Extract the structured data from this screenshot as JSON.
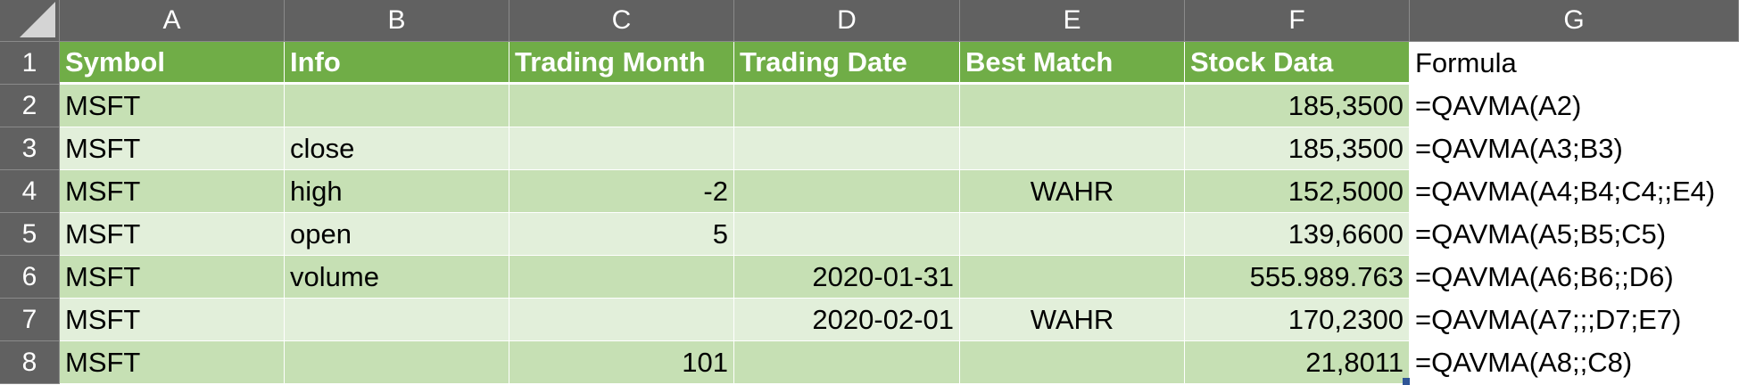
{
  "columns": [
    "A",
    "B",
    "C",
    "D",
    "E",
    "F",
    "G"
  ],
  "header": {
    "symbol": "Symbol",
    "info": "Info",
    "trading_month": "Trading Month",
    "trading_date": "Trading Date",
    "best_match": "Best Match",
    "stock_data": "Stock Data",
    "formula": "Formula"
  },
  "rows": [
    {
      "num": "1"
    },
    {
      "num": "2",
      "symbol": "MSFT",
      "info": "",
      "trading_month": "",
      "trading_date": "",
      "best_match": "",
      "stock_data": "185,3500",
      "formula": "=QAVMA(A2)"
    },
    {
      "num": "3",
      "symbol": "MSFT",
      "info": "close",
      "trading_month": "",
      "trading_date": "",
      "best_match": "",
      "stock_data": "185,3500",
      "formula": "=QAVMA(A3;B3)"
    },
    {
      "num": "4",
      "symbol": "MSFT",
      "info": "high",
      "trading_month": "-2",
      "trading_date": "",
      "best_match": "WAHR",
      "stock_data": "152,5000",
      "formula": "=QAVMA(A4;B4;C4;;E4)"
    },
    {
      "num": "5",
      "symbol": "MSFT",
      "info": "open",
      "trading_month": "5",
      "trading_date": "",
      "best_match": "",
      "stock_data": "139,6600",
      "formula": "=QAVMA(A5;B5;C5)"
    },
    {
      "num": "6",
      "symbol": "MSFT",
      "info": "volume",
      "trading_month": "",
      "trading_date": "2020-01-31",
      "best_match": "",
      "stock_data": "555.989.763",
      "formula": "=QAVMA(A6;B6;;D6)"
    },
    {
      "num": "7",
      "symbol": "MSFT",
      "info": "",
      "trading_month": "",
      "trading_date": "2020-02-01",
      "best_match": "WAHR",
      "stock_data": "170,2300",
      "formula": "=QAVMA(A7;;;D7;E7)"
    },
    {
      "num": "8",
      "symbol": "MSFT",
      "info": "",
      "trading_month": "101",
      "trading_date": "",
      "best_match": "",
      "stock_data": "21,8011",
      "formula": "=QAVMA(A8;;C8)"
    }
  ],
  "colors": {
    "header_chrome": "#616161",
    "table_header": "#70ad47",
    "band_dark": "#c6e0b4",
    "band_light": "#e2efda",
    "selection_handle": "#2f5597"
  }
}
